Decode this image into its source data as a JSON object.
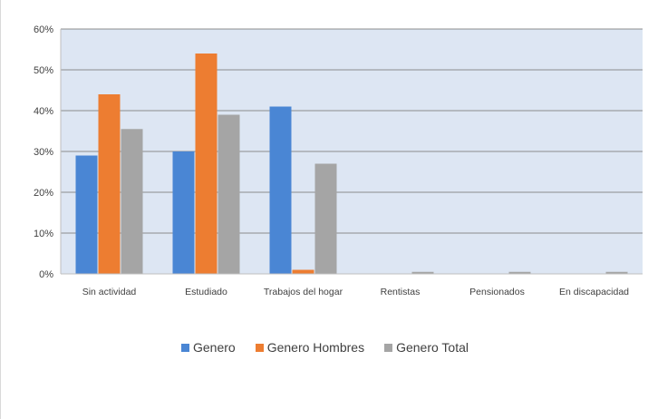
{
  "chart_data": {
    "type": "bar",
    "categories": [
      "Sin actividad",
      "Estudiado",
      "Trabajos del hogar",
      "Rentistas",
      "Pensionados",
      "En discapacidad"
    ],
    "series": [
      {
        "name": "Genero",
        "color": "#4a86d4",
        "values": [
          29,
          30,
          41,
          0,
          0,
          0
        ]
      },
      {
        "name": "Genero Hombres",
        "color": "#ed7d31",
        "values": [
          44,
          54,
          1,
          0,
          0,
          0
        ]
      },
      {
        "name": "Genero Total",
        "color": "#a5a5a5",
        "values": [
          35.5,
          39,
          27,
          0.5,
          0.5,
          0.5
        ]
      }
    ],
    "yticks": [
      "0%",
      "10%",
      "20%",
      "30%",
      "40%",
      "50%",
      "60%"
    ],
    "ylim": [
      0,
      60
    ],
    "grid": true,
    "plot_background": "#dde6f3",
    "legend_position": "bottom"
  }
}
